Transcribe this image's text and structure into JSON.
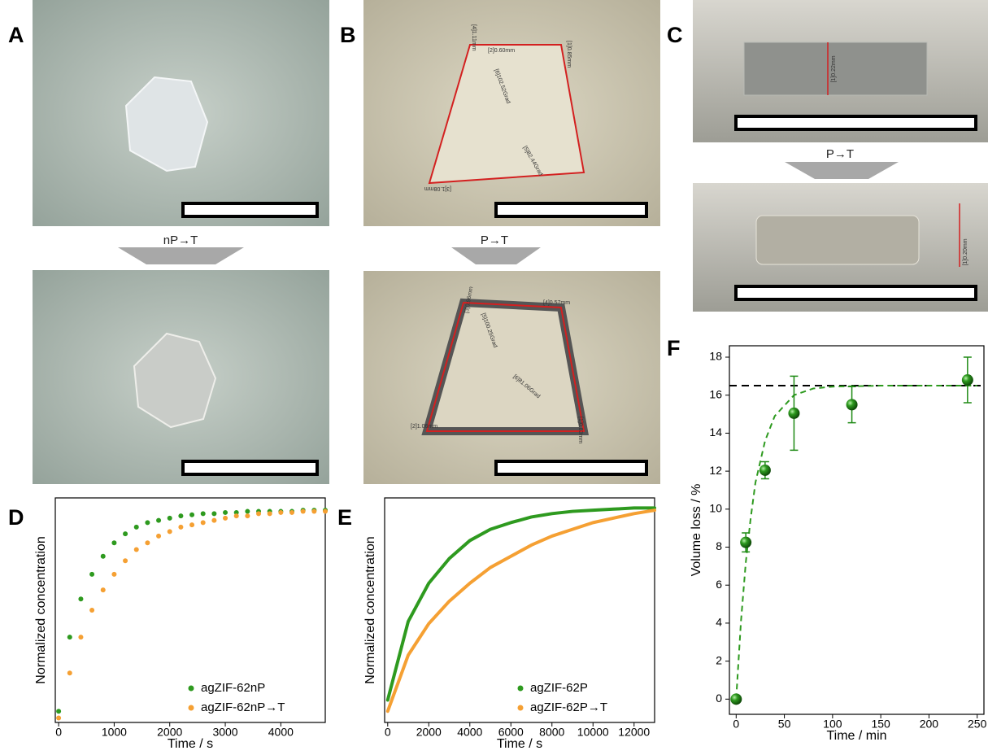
{
  "panel_labels": [
    "A",
    "B",
    "C",
    "D",
    "E",
    "F"
  ],
  "transitions": [
    "nP→T",
    "P→T",
    "P→T"
  ],
  "measurements": {
    "b_before": [
      "[1]0.85mm",
      "[2]0.60mm",
      "[3]1.08mm",
      "[4]1.11mm",
      "[5]82.44Grad",
      "[6]102.52Grad"
    ],
    "b_after": [
      "[1]0.83mm",
      "[2]1.06mm",
      "[3]0.96mm",
      "[4]0.57mm",
      "[5]100.25Grad",
      "[6]81.06Grad"
    ],
    "c_before": [
      "[1]0.22mm"
    ],
    "c_after": [
      "[1]0.20mm"
    ]
  },
  "chart_data": [
    {
      "type": "scatter",
      "xlabel": "Time / s",
      "ylabel": "Normalized concentration",
      "x": [
        0,
        200,
        400,
        600,
        800,
        1000,
        1200,
        1400,
        1600,
        1800,
        2000,
        2200,
        2400,
        2600,
        2800,
        3000,
        3200,
        3400,
        3600,
        3800,
        4000,
        4200,
        4400,
        4600,
        4800
      ],
      "xlim": [
        -60,
        4800
      ],
      "xticks": [
        0,
        1000,
        2000,
        3000,
        4000
      ],
      "ylim": [
        0,
        1
      ],
      "legend": "lower right",
      "series": [
        {
          "name": "agZIF-62nP",
          "color": "#2e9a1f",
          "values": [
            0.05,
            0.38,
            0.55,
            0.66,
            0.74,
            0.8,
            0.84,
            0.87,
            0.89,
            0.9,
            0.91,
            0.92,
            0.925,
            0.93,
            0.93,
            0.935,
            0.935,
            0.94,
            0.94,
            0.94,
            0.94,
            0.94,
            0.945,
            0.945,
            0.945
          ]
        },
        {
          "name": "agZIF-62nP→T",
          "color": "#f5a033",
          "values": [
            0.02,
            0.22,
            0.38,
            0.5,
            0.59,
            0.66,
            0.72,
            0.77,
            0.8,
            0.83,
            0.85,
            0.87,
            0.88,
            0.89,
            0.9,
            0.91,
            0.92,
            0.92,
            0.93,
            0.93,
            0.935,
            0.935,
            0.94,
            0.94,
            0.94
          ]
        }
      ]
    },
    {
      "type": "line",
      "xlabel": "Time / s",
      "ylabel": "Normalized concentration",
      "x": [
        0,
        1000,
        2000,
        3000,
        4000,
        5000,
        6000,
        7000,
        8000,
        9000,
        10000,
        11000,
        12000,
        13000
      ],
      "xlim": [
        -150,
        13000
      ],
      "xticks": [
        0,
        2000,
        4000,
        6000,
        8000,
        10000,
        12000
      ],
      "ylim": [
        0,
        1
      ],
      "legend": "lower right",
      "series": [
        {
          "name": "agZIF-62P",
          "color": "#2e9a1f",
          "values": [
            0.1,
            0.45,
            0.62,
            0.73,
            0.81,
            0.86,
            0.89,
            0.915,
            0.93,
            0.94,
            0.945,
            0.95,
            0.955,
            0.955
          ]
        },
        {
          "name": "agZIF-62P→T",
          "color": "#f5a033",
          "values": [
            0.05,
            0.3,
            0.44,
            0.54,
            0.62,
            0.69,
            0.74,
            0.79,
            0.83,
            0.86,
            0.89,
            0.91,
            0.93,
            0.945
          ]
        }
      ]
    },
    {
      "type": "scatter",
      "xlabel": "Time / min",
      "ylabel": "Volume loss / %",
      "x": [
        0,
        10,
        30,
        60,
        120,
        240
      ],
      "xlim": [
        -7,
        257
      ],
      "xticks": [
        0,
        50,
        100,
        150,
        200,
        250
      ],
      "ylim": [
        -0.8,
        18.6
      ],
      "yticks": [
        0,
        2,
        4,
        6,
        8,
        10,
        12,
        14,
        16,
        18
      ],
      "series": [
        {
          "color": "#1e8a14",
          "values": [
            0,
            8.25,
            12.05,
            15.05,
            15.5,
            16.8
          ],
          "errors": [
            0,
            0.5,
            0.45,
            1.95,
            0.95,
            1.2
          ]
        }
      ],
      "fit_line": {
        "color": "#2e9a1f",
        "x": [
          0,
          5,
          10,
          15,
          20,
          30,
          40,
          60,
          80,
          100,
          150,
          200,
          250
        ],
        "values": [
          0,
          4.1,
          7.2,
          9.5,
          11.4,
          13.6,
          14.9,
          16.0,
          16.35,
          16.45,
          16.5,
          16.5,
          16.5
        ]
      },
      "reference_line": 16.5
    }
  ]
}
